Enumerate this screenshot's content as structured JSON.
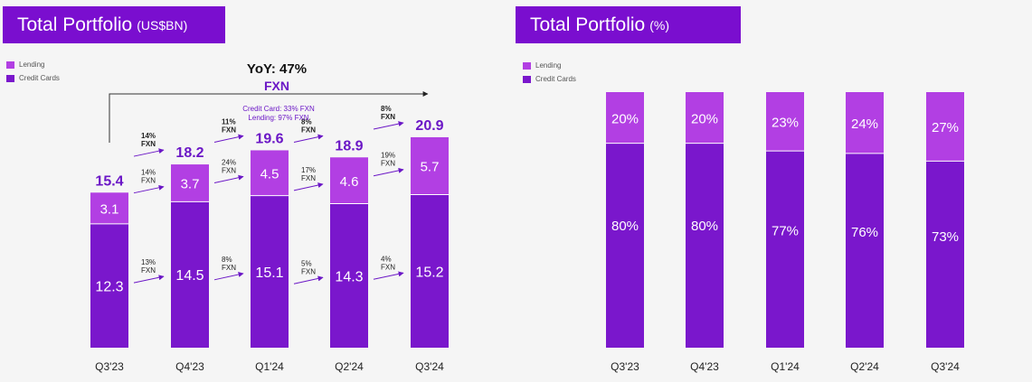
{
  "colors": {
    "lending": "#b23fe3",
    "credit": "#7a17cc",
    "accent": "#6b17c6",
    "text": "#222222"
  },
  "legend": {
    "lending": "Lending",
    "credit": "Credit Cards"
  },
  "yoy": {
    "label": "YoY: 47%",
    "fxn": "FXN",
    "note1": "Credit Card: 33% FXN",
    "note2": "Lending: 97% FXN"
  },
  "chart_data": [
    {
      "type": "bar",
      "stacked": true,
      "title": "Total Portfolio",
      "unit": "(US$BN)",
      "categories": [
        "Q3'23",
        "Q4'23",
        "Q1'24",
        "Q2'24",
        "Q3'24"
      ],
      "series": [
        {
          "name": "Credit Cards",
          "values": [
            12.3,
            14.5,
            15.1,
            14.3,
            15.2
          ]
        },
        {
          "name": "Lending",
          "values": [
            3.1,
            3.7,
            4.5,
            4.6,
            5.7
          ]
        }
      ],
      "totals": [
        "15.4",
        "18.2",
        "19.6",
        "18.9",
        "20.9"
      ],
      "growth": [
        {
          "total": "14%",
          "lending": "14%",
          "credit": "13%"
        },
        {
          "total": "11%",
          "lending": "24%",
          "credit": "8%"
        },
        {
          "total": "8%",
          "lending": "17%",
          "credit": "5%"
        },
        {
          "total": "8%",
          "lending": "19%",
          "credit": "4%"
        }
      ],
      "growth_unit": "FXN",
      "ylim": [
        0,
        21
      ]
    },
    {
      "type": "bar",
      "stacked": true,
      "percent": true,
      "title": "Total Portfolio",
      "unit": "(%)",
      "categories": [
        "Q3'23",
        "Q4'23",
        "Q1'24",
        "Q2'24",
        "Q3'24"
      ],
      "series": [
        {
          "name": "Credit Cards",
          "values": [
            80,
            80,
            77,
            76,
            73
          ]
        },
        {
          "name": "Lending",
          "values": [
            20,
            20,
            23,
            24,
            27
          ]
        }
      ],
      "ylim": [
        0,
        100
      ]
    }
  ]
}
